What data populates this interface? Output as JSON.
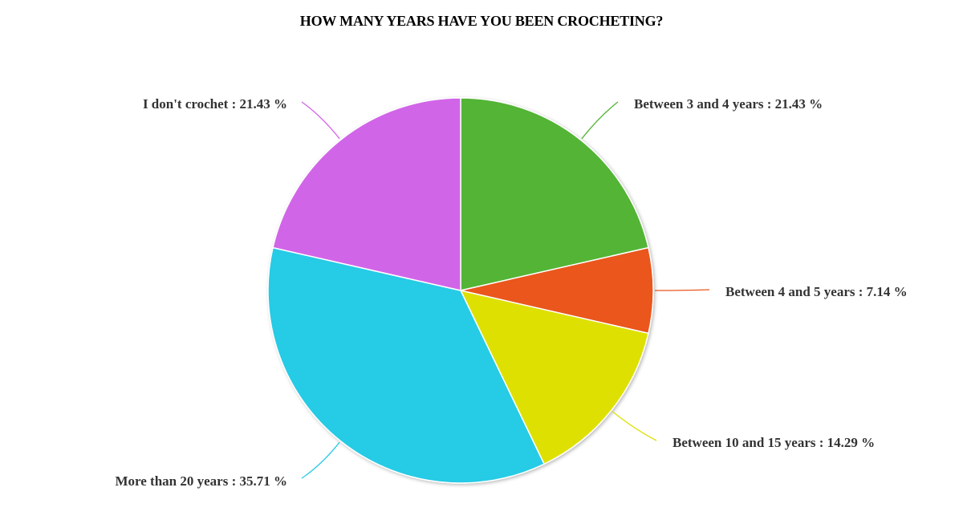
{
  "chart_data": {
    "type": "pie",
    "title": "HOW MANY YEARS HAVE YOU BEEN CROCHETING?",
    "start_angle_deg": 0,
    "direction": "clockwise",
    "slices": [
      {
        "label": "Between 3 and 4 years",
        "value": 21.43,
        "display": "Between 3 and 4 years : 21.43 %",
        "color": "#52b434"
      },
      {
        "label": "Between 4 and 5 years",
        "value": 7.14,
        "display": "Between 4 and 5 years : 7.14 %",
        "color": "#ea561d"
      },
      {
        "label": "Between 10 and 15 years",
        "value": 14.29,
        "display": "Between 10 and 15 years : 14.29 %",
        "color": "#dde000"
      },
      {
        "label": "More than 20 years",
        "value": 35.71,
        "display": "More than 20 years : 35.71 %",
        "color": "#27cbe5"
      },
      {
        "label": "I don't crochet",
        "value": 21.43,
        "display": "I don't crochet : 21.43 %",
        "color": "#d165e8"
      }
    ],
    "legend": "none",
    "labels_position": "outside-with-leader-lines"
  }
}
